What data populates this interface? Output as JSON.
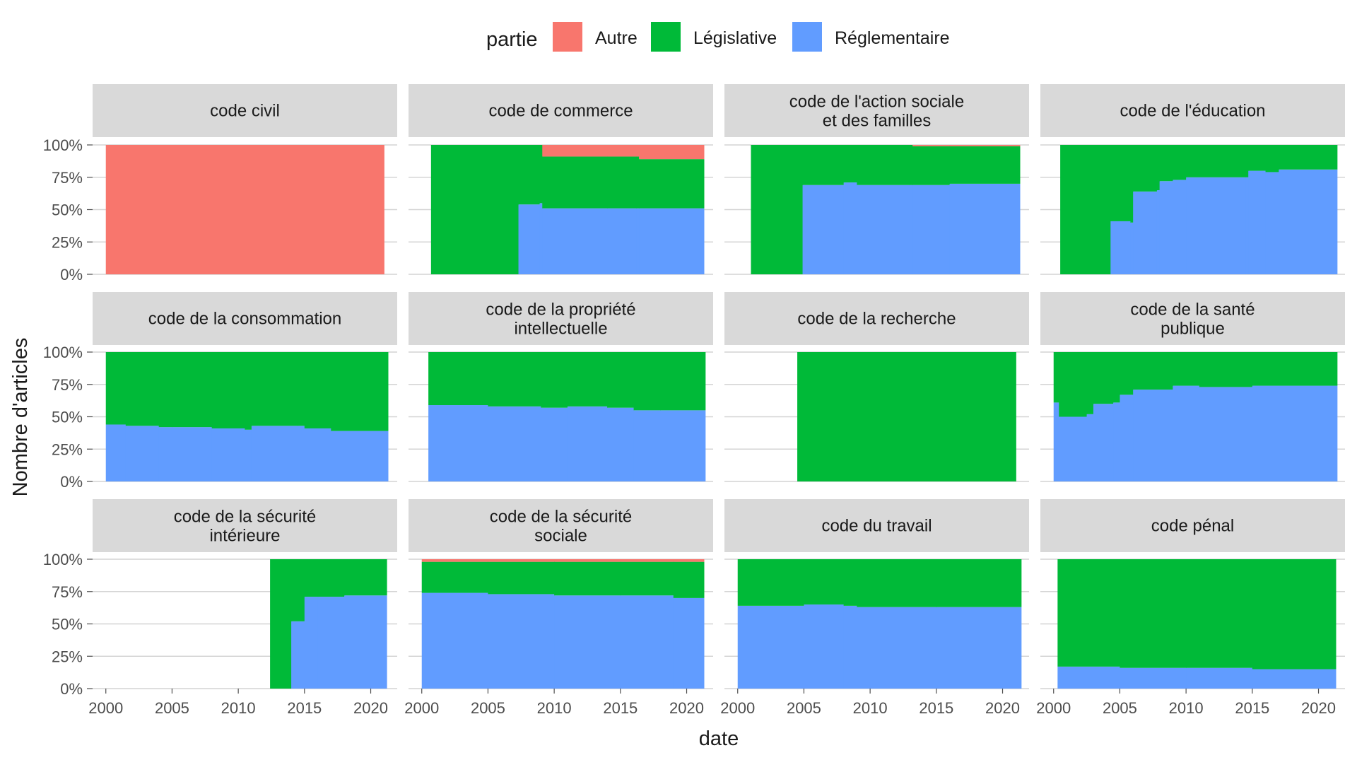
{
  "chart_data": {
    "type": "area",
    "stacked": "fill",
    "xlabel": "date",
    "ylabel": "Nombre d'articles",
    "xlim": [
      1999,
      2022
    ],
    "ylim": [
      0,
      1
    ],
    "x_ticks": [
      2000,
      2005,
      2010,
      2015,
      2020
    ],
    "y_ticks": [
      0,
      0.25,
      0.5,
      0.75,
      1
    ],
    "y_tick_labels": [
      "0%",
      "25%",
      "50%",
      "75%",
      "100%"
    ],
    "grid": true,
    "legend": {
      "title": "partie",
      "position": "top",
      "entries": [
        {
          "name": "Autre",
          "color": "#F8766D"
        },
        {
          "name": "Législative",
          "color": "#00BA38"
        },
        {
          "name": "Réglementaire",
          "color": "#619CFF"
        }
      ]
    },
    "facets": [
      {
        "title": [
          "code civil"
        ],
        "start": 2000,
        "end": 2021,
        "regl": [
          [
            2000,
            0
          ],
          [
            2021,
            0
          ]
        ],
        "autre": [
          [
            2000,
            1
          ],
          [
            2021,
            1
          ]
        ]
      },
      {
        "title": [
          "code de commerce"
        ],
        "start": 2000.7,
        "end": 2021.3,
        "regl": [
          [
            2000.7,
            0
          ],
          [
            2007.2,
            0
          ],
          [
            2007.3,
            0.54
          ],
          [
            2008.9,
            0.55
          ],
          [
            2009.1,
            0.51
          ],
          [
            2014,
            0.51
          ],
          [
            2021.3,
            0.5
          ]
        ],
        "autre": [
          [
            2000.7,
            0
          ],
          [
            2008.9,
            0
          ],
          [
            2009.1,
            0.09
          ],
          [
            2016.2,
            0.09
          ],
          [
            2016.4,
            0.11
          ],
          [
            2021.3,
            0.12
          ]
        ]
      },
      {
        "title": [
          "code de l'action sociale",
          "et des familles"
        ],
        "start": 2001,
        "end": 2021.3,
        "regl": [
          [
            2001,
            0
          ],
          [
            2004.7,
            0
          ],
          [
            2004.9,
            0.69
          ],
          [
            2008,
            0.71
          ],
          [
            2009,
            0.69
          ],
          [
            2016,
            0.7
          ],
          [
            2021.3,
            0.72
          ]
        ],
        "autre": [
          [
            2001,
            0
          ],
          [
            2013,
            0
          ],
          [
            2013.2,
            0.01
          ],
          [
            2021.3,
            0.01
          ]
        ]
      },
      {
        "title": [
          "code de l'éducation"
        ],
        "start": 2000.5,
        "end": 2021.4,
        "regl": [
          [
            2000.5,
            0
          ],
          [
            2004.2,
            0
          ],
          [
            2004.3,
            0.41
          ],
          [
            2005.8,
            0.4
          ],
          [
            2006,
            0.64
          ],
          [
            2007.8,
            0.65
          ],
          [
            2008,
            0.72
          ],
          [
            2009,
            0.73
          ],
          [
            2010,
            0.75
          ],
          [
            2014.5,
            0.75
          ],
          [
            2014.7,
            0.8
          ],
          [
            2016,
            0.79
          ],
          [
            2017,
            0.81
          ],
          [
            2021.4,
            0.81
          ]
        ],
        "autre": [
          [
            2000.5,
            0
          ],
          [
            2021.4,
            0
          ]
        ]
      },
      {
        "title": [
          "code de la consommation"
        ],
        "start": 2000,
        "end": 2021.3,
        "regl": [
          [
            2000,
            0.44
          ],
          [
            2001.5,
            0.43
          ],
          [
            2004,
            0.42
          ],
          [
            2005,
            0.42
          ],
          [
            2008,
            0.41
          ],
          [
            2010.5,
            0.4
          ],
          [
            2011,
            0.43
          ],
          [
            2014.5,
            0.43
          ],
          [
            2015,
            0.41
          ],
          [
            2017,
            0.39
          ],
          [
            2021.3,
            0.39
          ]
        ],
        "autre": [
          [
            2000,
            0
          ],
          [
            2021.3,
            0
          ]
        ]
      },
      {
        "title": [
          "code de la propriété",
          "intellectuelle"
        ],
        "start": 2000.5,
        "end": 2021.4,
        "regl": [
          [
            2000.5,
            0.59
          ],
          [
            2005,
            0.58
          ],
          [
            2009,
            0.57
          ],
          [
            2011,
            0.58
          ],
          [
            2014,
            0.57
          ],
          [
            2016,
            0.55
          ],
          [
            2018,
            0.55
          ],
          [
            2021.4,
            0.55
          ]
        ],
        "autre": [
          [
            2000.5,
            0
          ],
          [
            2021.4,
            0
          ]
        ]
      },
      {
        "title": [
          "code de la recherche"
        ],
        "start": 2004.5,
        "end": 2021,
        "regl": [
          [
            2004.5,
            0
          ],
          [
            2021,
            0
          ]
        ],
        "autre": [
          [
            2004.5,
            0
          ],
          [
            2021,
            0
          ]
        ]
      },
      {
        "title": [
          "code de la santé",
          "publique"
        ],
        "start": 2000,
        "end": 2021.4,
        "regl": [
          [
            2000,
            0.61
          ],
          [
            2000.4,
            0.5
          ],
          [
            2002.5,
            0.52
          ],
          [
            2003,
            0.6
          ],
          [
            2004.5,
            0.61
          ],
          [
            2005,
            0.67
          ],
          [
            2006,
            0.71
          ],
          [
            2009,
            0.74
          ],
          [
            2011,
            0.73
          ],
          [
            2015,
            0.74
          ],
          [
            2021.4,
            0.74
          ]
        ],
        "autre": [
          [
            2000,
            0
          ],
          [
            2021.4,
            0
          ]
        ]
      },
      {
        "title": [
          "code de la sécurité",
          "intérieure"
        ],
        "start": 2012.4,
        "end": 2021.2,
        "regl": [
          [
            2012.4,
            0
          ],
          [
            2013.9,
            0
          ],
          [
            2014,
            0.52
          ],
          [
            2014.8,
            0.52
          ],
          [
            2015,
            0.71
          ],
          [
            2016,
            0.71
          ],
          [
            2018,
            0.72
          ],
          [
            2021.2,
            0.72
          ]
        ],
        "autre": [
          [
            2012.4,
            0
          ],
          [
            2021.2,
            0
          ]
        ]
      },
      {
        "title": [
          "code de la sécurité",
          "sociale"
        ],
        "start": 2000,
        "end": 2021.3,
        "regl": [
          [
            2000,
            0.74
          ],
          [
            2005,
            0.73
          ],
          [
            2010,
            0.72
          ],
          [
            2015,
            0.72
          ],
          [
            2019,
            0.7
          ],
          [
            2021.3,
            0.69
          ]
        ],
        "autre": [
          [
            2000,
            0.02
          ],
          [
            2021.3,
            0.02
          ]
        ]
      },
      {
        "title": [
          "code du travail"
        ],
        "start": 2000,
        "end": 2021.4,
        "regl": [
          [
            2000,
            0.64
          ],
          [
            2005,
            0.65
          ],
          [
            2008,
            0.64
          ],
          [
            2009,
            0.63
          ],
          [
            2015,
            0.63
          ],
          [
            2021.4,
            0.61
          ]
        ],
        "autre": [
          [
            2000,
            0
          ],
          [
            2021.4,
            0
          ]
        ]
      },
      {
        "title": [
          "code pénal"
        ],
        "start": 2000.3,
        "end": 2021.3,
        "regl": [
          [
            2000.3,
            0.17
          ],
          [
            2005,
            0.16
          ],
          [
            2010,
            0.16
          ],
          [
            2015,
            0.15
          ],
          [
            2021.3,
            0.15
          ]
        ],
        "autre": [
          [
            2000.3,
            0
          ],
          [
            2021.3,
            0
          ]
        ]
      }
    ]
  }
}
